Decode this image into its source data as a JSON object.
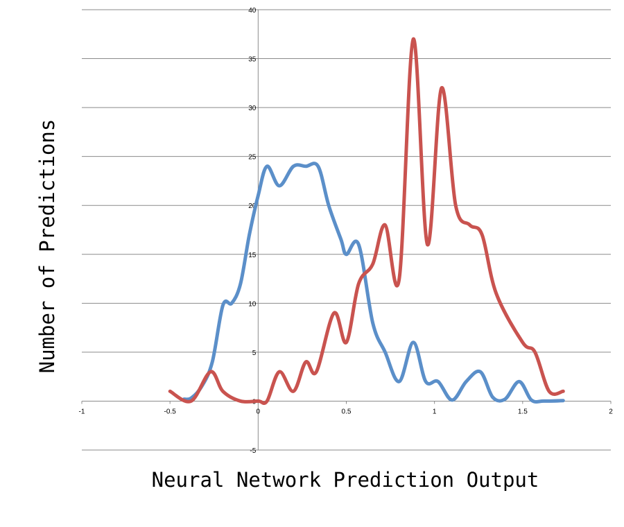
{
  "chart_data": {
    "type": "line",
    "title": "",
    "xlabel": "Neural Network Prediction Output",
    "ylabel": "Number of Predictions",
    "xlim": [
      -1,
      2
    ],
    "ylim": [
      -5,
      40
    ],
    "x_ticks": [
      -1,
      -0.5,
      0,
      0.5,
      1,
      1.5,
      2
    ],
    "x_tick_labels": [
      "-1",
      "-0.5",
      "0",
      "0.5",
      "1",
      "1.5",
      "2"
    ],
    "y_ticks": [
      -5,
      0,
      5,
      10,
      15,
      20,
      25,
      30,
      35,
      40
    ],
    "y_tick_labels": [
      "-5",
      "0",
      "5",
      "10",
      "15",
      "20",
      "25",
      "30",
      "35",
      "40"
    ],
    "grid": "horizontal",
    "legend": "none",
    "series": [
      {
        "color": "#5B8FC9",
        "points": [
          [
            -0.42,
            0.2
          ],
          [
            -0.38,
            0.3
          ],
          [
            -0.32,
            1.5
          ],
          [
            -0.26,
            4
          ],
          [
            -0.2,
            9.8
          ],
          [
            -0.15,
            10
          ],
          [
            -0.1,
            12
          ],
          [
            -0.05,
            17
          ],
          [
            0,
            21
          ],
          [
            0.05,
            24
          ],
          [
            0.12,
            22
          ],
          [
            0.2,
            24
          ],
          [
            0.27,
            24
          ],
          [
            0.34,
            24
          ],
          [
            0.4,
            20
          ],
          [
            0.47,
            16.5
          ],
          [
            0.5,
            15
          ],
          [
            0.57,
            16
          ],
          [
            0.65,
            8
          ],
          [
            0.72,
            5
          ],
          [
            0.8,
            2
          ],
          [
            0.88,
            6
          ],
          [
            0.95,
            2
          ],
          [
            1.02,
            2
          ],
          [
            1.1,
            0.1
          ],
          [
            1.18,
            2
          ],
          [
            1.26,
            3
          ],
          [
            1.33,
            0.4
          ],
          [
            1.4,
            0.2
          ],
          [
            1.48,
            2
          ],
          [
            1.55,
            0.1
          ],
          [
            1.62,
            0
          ],
          [
            1.73,
            0.05
          ]
        ]
      },
      {
        "color": "#C9534F",
        "points": [
          [
            -0.5,
            1
          ],
          [
            -0.38,
            0
          ],
          [
            -0.27,
            3
          ],
          [
            -0.2,
            1
          ],
          [
            -0.1,
            0
          ],
          [
            0,
            0
          ],
          [
            0.05,
            0
          ],
          [
            0.12,
            3
          ],
          [
            0.2,
            1
          ],
          [
            0.27,
            4
          ],
          [
            0.33,
            3
          ],
          [
            0.43,
            9
          ],
          [
            0.5,
            6
          ],
          [
            0.57,
            12
          ],
          [
            0.65,
            14
          ],
          [
            0.72,
            18
          ],
          [
            0.8,
            12.5
          ],
          [
            0.88,
            37
          ],
          [
            0.96,
            16
          ],
          [
            1.04,
            32
          ],
          [
            1.12,
            20
          ],
          [
            1.2,
            18
          ],
          [
            1.27,
            17
          ],
          [
            1.35,
            11
          ],
          [
            1.5,
            6
          ],
          [
            1.57,
            5
          ],
          [
            1.65,
            1
          ],
          [
            1.73,
            1
          ]
        ]
      }
    ]
  }
}
